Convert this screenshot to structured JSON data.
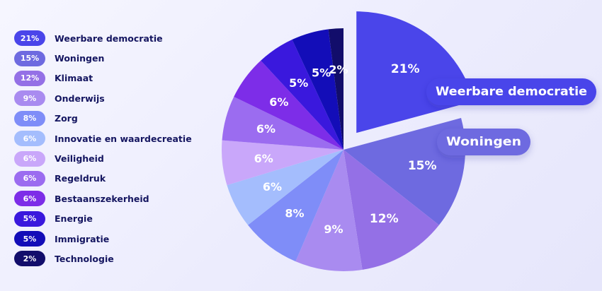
{
  "chart_data": {
    "type": "pie",
    "categories": [
      "Weerbare democratie",
      "Woningen",
      "Klimaat",
      "Onderwijs",
      "Zorg",
      "Innovatie en waardecreatie",
      "Veiligheid",
      "Regeldruk",
      "Bestaanszekerheid",
      "Energie",
      "Immigratie",
      "Technologie"
    ],
    "values": [
      21,
      15,
      12,
      9,
      8,
      6,
      6,
      6,
      6,
      5,
      5,
      2
    ],
    "value_labels": [
      "21%",
      "15%",
      "12%",
      "9%",
      "8%",
      "6%",
      "6%",
      "6%",
      "6%",
      "5%",
      "5%",
      "2%"
    ],
    "colors": [
      "#4a45ea",
      "#6e6ae0",
      "#9470e6",
      "#a98bf0",
      "#7f8df8",
      "#a4bdfd",
      "#c9a7fa",
      "#9b6cf0",
      "#7d2de8",
      "#3a18dd",
      "#130db8",
      "#120d6b"
    ],
    "legend_position": "left",
    "exploded": [
      "Weerbare democratie"
    ],
    "callouts": [
      "Weerbare democratie",
      "Woningen"
    ]
  }
}
